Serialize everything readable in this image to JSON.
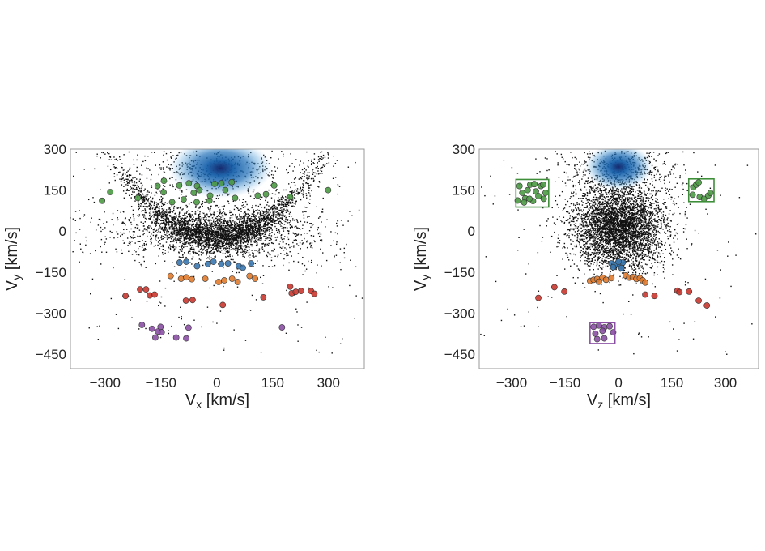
{
  "chart_data": [
    {
      "type": "scatter",
      "panel": "left",
      "xlabel": {
        "main": "V",
        "sub": "x",
        "unit": " [km/s]"
      },
      "ylabel": {
        "main": "V",
        "sub": "y",
        "unit": " [km/s]"
      },
      "xlim": [
        -393,
        396
      ],
      "ylim": [
        -503,
        300
      ],
      "xticks": [
        -300,
        -150,
        0,
        150,
        300
      ],
      "yticks": [
        300,
        150,
        0,
        -150,
        -300,
        -450
      ],
      "xtick_labels": [
        "−300",
        "−150",
        "0",
        "150",
        "300"
      ],
      "ytick_labels": [
        "300",
        "150",
        "0",
        "−150",
        "−300",
        "−450"
      ],
      "grid": false,
      "density": {
        "center": [
          10,
          230
        ],
        "spread": [
          140,
          110
        ],
        "color": "#1f6fb8"
      },
      "background": {
        "color": "#111111",
        "seed": 7,
        "arc": {
          "n": 2600,
          "curvature": 0.0035,
          "x_sd": 120,
          "y_sd": 28
        },
        "cloud": {
          "n": 1800,
          "center": [
            0,
            0
          ],
          "sd": [
            140,
            55
          ]
        },
        "sparse": {
          "n": 160
        }
      },
      "series": [
        {
          "name": "green",
          "color": "#4c9a45",
          "points": [
            [
              -308,
              111
            ],
            [
              -286,
              143
            ],
            [
              -212,
              121
            ],
            [
              -159,
              165
            ],
            [
              -142,
              184
            ],
            [
              -143,
              142
            ],
            [
              -120,
              106
            ],
            [
              -101,
              167
            ],
            [
              -89,
              116
            ],
            [
              -75,
              175
            ],
            [
              -62,
              140
            ],
            [
              -53,
              165
            ],
            [
              -47,
              150
            ],
            [
              -54,
              106
            ],
            [
              -20,
              111
            ],
            [
              -18,
              130
            ],
            [
              -6,
              173
            ],
            [
              12,
              175
            ],
            [
              23,
              150
            ],
            [
              40,
              179
            ],
            [
              49,
              121
            ],
            [
              110,
              130
            ],
            [
              132,
              135
            ],
            [
              154,
              167
            ],
            [
              197,
              125
            ],
            [
              299,
              150
            ]
          ]
        },
        {
          "name": "blue",
          "color": "#3b78b0",
          "points": [
            [
              -100,
              -115
            ],
            [
              -82,
              -112
            ],
            [
              -53,
              -128
            ],
            [
              -24,
              -120
            ],
            [
              -9,
              -112
            ],
            [
              12,
              -120
            ],
            [
              30,
              -118
            ],
            [
              59,
              -128
            ],
            [
              70,
              -134
            ],
            [
              92,
              -118
            ]
          ]
        },
        {
          "name": "orange",
          "color": "#e07b2e",
          "points": [
            [
              -124,
              -164
            ],
            [
              -96,
              -174
            ],
            [
              -82,
              -169
            ],
            [
              -67,
              -176
            ],
            [
              -31,
              -174
            ],
            [
              5,
              -186
            ],
            [
              20,
              -180
            ],
            [
              41,
              -174
            ],
            [
              56,
              -186
            ],
            [
              88,
              -164
            ],
            [
              103,
              -174
            ]
          ]
        },
        {
          "name": "red",
          "color": "#c8372d",
          "points": [
            [
              -245,
              -237
            ],
            [
              -206,
              -213
            ],
            [
              -190,
              -213
            ],
            [
              -180,
              -235
            ],
            [
              -167,
              -232
            ],
            [
              -83,
              -254
            ],
            [
              -65,
              -252
            ],
            [
              16,
              -270
            ],
            [
              125,
              -242
            ],
            [
              197,
              -203
            ],
            [
              201,
              -227
            ],
            [
              212,
              -222
            ],
            [
              226,
              -219
            ],
            [
              253,
              -219
            ],
            [
              262,
              -229
            ]
          ]
        },
        {
          "name": "purple",
          "color": "#8a4fa3",
          "points": [
            [
              -201,
              -343
            ],
            [
              -174,
              -357
            ],
            [
              -165,
              -389
            ],
            [
              -158,
              -367
            ],
            [
              -151,
              -350
            ],
            [
              -148,
              -370
            ],
            [
              -109,
              -389
            ],
            [
              -82,
              -392
            ],
            [
              -76,
              -353
            ],
            [
              175,
              -352
            ]
          ]
        }
      ],
      "boxes": []
    },
    {
      "type": "scatter",
      "panel": "right",
      "xlabel": {
        "main": "V",
        "sub": "z",
        "unit": " [km/s]"
      },
      "ylabel": {
        "main": "V",
        "sub": "y",
        "unit": " [km/s]"
      },
      "xlim": [
        -391,
        393
      ],
      "ylim": [
        -503,
        300
      ],
      "xticks": [
        -300,
        -150,
        0,
        150,
        300
      ],
      "yticks": [
        300,
        150,
        0,
        -150,
        -300,
        -450
      ],
      "xtick_labels": [
        "−300",
        "−150",
        "0",
        "150",
        "300"
      ],
      "ytick_labels": [
        "300",
        "150",
        "0",
        "−150",
        "−300",
        "−450"
      ],
      "grid": false,
      "density": {
        "center": [
          0,
          235
        ],
        "spread": [
          95,
          85
        ],
        "color": "#1f6fb8"
      },
      "background": {
        "color": "#111111",
        "seed": 13,
        "arc": null,
        "cloud": {
          "n": 4200,
          "center": [
            0,
            20
          ],
          "sd": [
            65,
            75
          ]
        },
        "sparse": {
          "n": 120
        }
      },
      "series": [
        {
          "name": "green",
          "color": "#4c9a45",
          "points": [
            [
              -278,
              165
            ],
            [
              -270,
              140
            ],
            [
              -262,
              120
            ],
            [
              -255,
              150
            ],
            [
              -248,
              170
            ],
            [
              -240,
              110
            ],
            [
              -232,
              145
            ],
            [
              -225,
              128
            ],
            [
              -218,
              165
            ],
            [
              -210,
              118
            ],
            [
              -205,
              140
            ],
            [
              -283,
              112
            ],
            [
              -265,
              105
            ],
            [
              -250,
              118
            ],
            [
              -236,
              172
            ],
            [
              -212,
              170
            ],
            [
              210,
              160
            ],
            [
              218,
              170
            ],
            [
              225,
              178
            ],
            [
              208,
              133
            ],
            [
              228,
              125
            ],
            [
              240,
              118
            ],
            [
              252,
              130
            ],
            [
              258,
              140
            ]
          ]
        },
        {
          "name": "blue",
          "color": "#3b78b0",
          "points": [
            [
              -20,
              -118
            ],
            [
              -12,
              -125
            ],
            [
              -5,
              -120
            ],
            [
              5,
              -128
            ],
            [
              12,
              -115
            ],
            [
              -15,
              -132
            ],
            [
              0,
              -112
            ],
            [
              8,
              -135
            ]
          ]
        },
        {
          "name": "orange",
          "color": "#e07b2e",
          "points": [
            [
              -80,
              -182
            ],
            [
              -70,
              -178
            ],
            [
              -60,
              -175
            ],
            [
              -45,
              -170
            ],
            [
              -35,
              -178
            ],
            [
              -20,
              -172
            ],
            [
              20,
              -162
            ],
            [
              30,
              -170
            ],
            [
              40,
              -168
            ],
            [
              50,
              -175
            ],
            [
              60,
              -172
            ],
            [
              68,
              -180
            ],
            [
              75,
              -188
            ],
            [
              -55,
              -185
            ]
          ]
        },
        {
          "name": "red",
          "color": "#c8372d",
          "points": [
            [
              -225,
              -244
            ],
            [
              -180,
              -205
            ],
            [
              -152,
              -221
            ],
            [
              75,
              -232
            ],
            [
              101,
              -237
            ],
            [
              165,
              -218
            ],
            [
              171,
              -223
            ],
            [
              198,
              -221
            ],
            [
              225,
              -254
            ],
            [
              248,
              -272
            ]
          ]
        },
        {
          "name": "purple",
          "color": "#8a4fa3",
          "points": [
            [
              -70,
              -350
            ],
            [
              -55,
              -345
            ],
            [
              -40,
              -352
            ],
            [
              -25,
              -348
            ],
            [
              -65,
              -375
            ],
            [
              -45,
              -365
            ],
            [
              -60,
              -395
            ],
            [
              -40,
              -392
            ],
            [
              -15,
              -370
            ]
          ]
        }
      ],
      "boxes": [
        {
          "name": "green-box-left",
          "color": "#3f8f3a",
          "x": [
            -288,
            -196
          ],
          "y": [
            88,
            189
          ]
        },
        {
          "name": "green-box-right",
          "color": "#3f8f3a",
          "x": [
            197,
            268
          ],
          "y": [
            108,
            191
          ]
        },
        {
          "name": "purple-box",
          "color": "#8a4fa3",
          "x": [
            -80,
            -10
          ],
          "y": [
            -411,
            -335
          ]
        }
      ]
    }
  ]
}
